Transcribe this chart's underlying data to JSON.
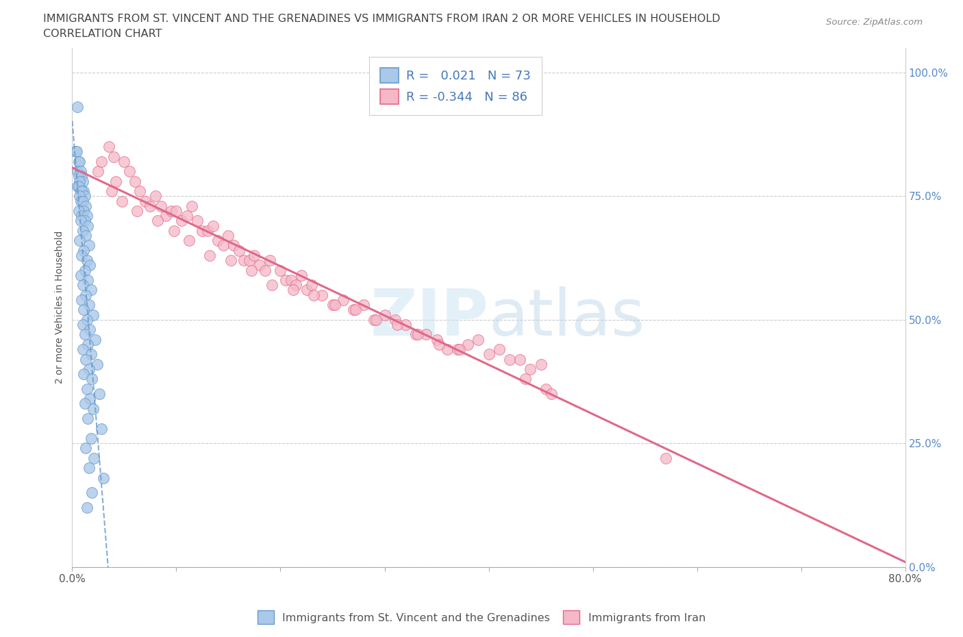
{
  "title_line1": "IMMIGRANTS FROM ST. VINCENT AND THE GRENADINES VS IMMIGRANTS FROM IRAN 2 OR MORE VEHICLES IN HOUSEHOLD",
  "title_line2": "CORRELATION CHART",
  "source": "Source: ZipAtlas.com",
  "ylabel": "2 or more Vehicles in Household",
  "yticks": [
    "100.0%",
    "75.0%",
    "50.0%",
    "25.0%",
    "0.0%"
  ],
  "ytick_vals": [
    100,
    75,
    50,
    25,
    0
  ],
  "xmin": 0,
  "xmax": 80,
  "ymin": 0,
  "ymax": 105,
  "blue_R": 0.021,
  "blue_N": 73,
  "pink_R": -0.344,
  "pink_N": 86,
  "blue_color": "#aac8e8",
  "blue_edge": "#6699cc",
  "pink_color": "#f5b8c8",
  "pink_edge": "#e06888",
  "blue_label": "Immigrants from St. Vincent and the Grenadines",
  "pink_label": "Immigrants from Iran",
  "watermark_zip": "ZIP",
  "watermark_atlas": "atlas",
  "watermark_color": "#cce0f0",
  "blue_scatter_x": [
    0.5,
    0.3,
    0.4,
    0.6,
    0.7,
    0.5,
    0.8,
    0.6,
    0.9,
    1.0,
    0.7,
    0.5,
    0.6,
    0.8,
    1.1,
    0.9,
    1.2,
    0.7,
    0.8,
    1.0,
    1.3,
    1.1,
    0.6,
    0.9,
    1.4,
    1.2,
    0.8,
    1.5,
    1.0,
    1.3,
    0.7,
    1.6,
    1.1,
    0.9,
    1.4,
    1.7,
    1.2,
    0.8,
    1.5,
    1.0,
    1.8,
    1.3,
    0.9,
    1.6,
    1.1,
    2.0,
    1.4,
    1.0,
    1.7,
    1.2,
    2.2,
    1.5,
    1.0,
    1.8,
    1.3,
    2.4,
    1.6,
    1.1,
    1.9,
    1.4,
    2.6,
    1.7,
    1.2,
    2.0,
    1.5,
    2.8,
    1.8,
    1.3,
    2.1,
    1.6,
    3.0,
    1.9,
    1.4
  ],
  "blue_scatter_y": [
    93,
    84,
    84,
    82,
    82,
    80,
    80,
    79,
    79,
    78,
    78,
    77,
    77,
    76,
    76,
    76,
    75,
    75,
    74,
    74,
    73,
    72,
    72,
    71,
    71,
    70,
    70,
    69,
    68,
    67,
    66,
    65,
    64,
    63,
    62,
    61,
    60,
    59,
    58,
    57,
    56,
    55,
    54,
    53,
    52,
    51,
    50,
    49,
    48,
    47,
    46,
    45,
    44,
    43,
    42,
    41,
    40,
    39,
    38,
    36,
    35,
    34,
    33,
    32,
    30,
    28,
    26,
    24,
    22,
    20,
    18,
    15,
    12
  ],
  "pink_scatter_x": [
    2.5,
    2.8,
    3.5,
    4.0,
    4.2,
    5.0,
    5.5,
    6.0,
    6.5,
    7.0,
    7.5,
    8.0,
    8.5,
    9.0,
    9.5,
    10.0,
    10.5,
    11.0,
    11.5,
    12.0,
    12.5,
    13.0,
    13.5,
    14.0,
    14.5,
    15.0,
    15.5,
    16.0,
    16.5,
    17.0,
    17.5,
    18.0,
    18.5,
    19.0,
    20.0,
    20.5,
    21.0,
    21.5,
    22.0,
    22.5,
    23.0,
    24.0,
    25.0,
    26.0,
    27.0,
    28.0,
    29.0,
    30.0,
    31.0,
    32.0,
    33.0,
    34.0,
    35.0,
    36.0,
    37.0,
    38.0,
    39.0,
    40.0,
    41.0,
    42.0,
    43.0,
    44.0,
    45.0,
    3.8,
    4.8,
    6.2,
    8.2,
    9.8,
    11.2,
    13.2,
    15.2,
    17.2,
    19.2,
    21.2,
    23.2,
    25.2,
    27.2,
    29.2,
    31.2,
    33.2,
    35.2,
    37.2,
    57.0,
    43.5,
    45.5,
    46.0
  ],
  "pink_scatter_y": [
    80,
    82,
    85,
    83,
    78,
    82,
    80,
    78,
    76,
    74,
    73,
    75,
    73,
    71,
    72,
    72,
    70,
    71,
    73,
    70,
    68,
    68,
    69,
    66,
    65,
    67,
    65,
    64,
    62,
    62,
    63,
    61,
    60,
    62,
    60,
    58,
    58,
    57,
    59,
    56,
    57,
    55,
    53,
    54,
    52,
    53,
    50,
    51,
    50,
    49,
    47,
    47,
    46,
    44,
    44,
    45,
    46,
    43,
    44,
    42,
    42,
    40,
    41,
    76,
    74,
    72,
    70,
    68,
    66,
    63,
    62,
    60,
    57,
    56,
    55,
    53,
    52,
    50,
    49,
    47,
    45,
    44,
    22,
    38,
    36,
    35
  ]
}
